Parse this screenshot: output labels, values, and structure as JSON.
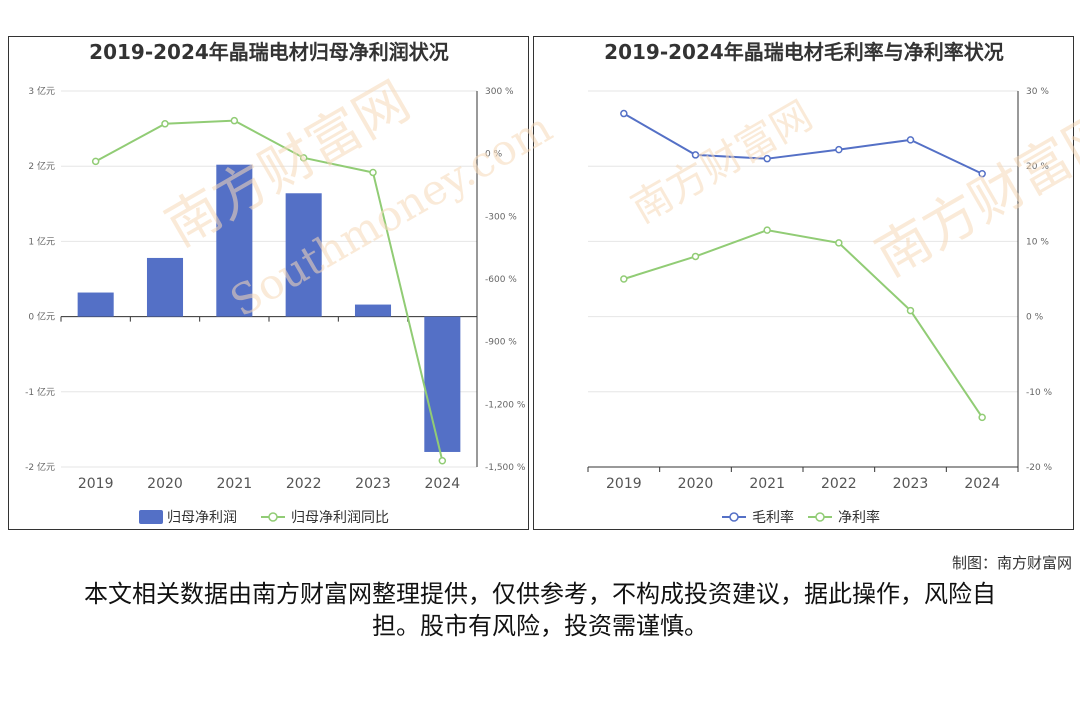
{
  "colors": {
    "bar": "#5470c6",
    "line_green": "#91cc75",
    "line_blue": "#5470c6",
    "grid": "#e6e6e6",
    "axis": "#333333"
  },
  "chart_data": [
    {
      "type": "bar",
      "title": "2019-2024年晶瑞电材归母净利润状况",
      "categories": [
        "2019",
        "2020",
        "2021",
        "2022",
        "2023",
        "2024"
      ],
      "y_left": {
        "min": -2,
        "max": 3,
        "step": 1,
        "unit": "亿元",
        "tick_labels": [
          "-2 亿元",
          "-1 亿元",
          "0 亿元",
          "1 亿元",
          "2 亿元",
          "3 亿元"
        ]
      },
      "y_right": {
        "min": -1500,
        "max": 300,
        "step": 300,
        "unit": "%",
        "tick_labels": [
          "-1,500 %",
          "-1,200 %",
          "-900 %",
          "-600 %",
          "-300 %",
          "0 %",
          "300 %"
        ]
      },
      "series": [
        {
          "name": "归母净利润",
          "type": "bar",
          "axis": "left",
          "values": [
            0.32,
            0.78,
            2.02,
            1.64,
            0.16,
            -1.8
          ]
        },
        {
          "name": "归母净利润同比",
          "type": "line",
          "axis": "right",
          "values": [
            -37,
            143,
            158,
            -20,
            -90,
            -1470
          ]
        }
      ],
      "legend": [
        "归母净利润",
        "归母净利润同比"
      ],
      "legend_position": "bottom"
    },
    {
      "type": "line",
      "title": "2019-2024年晶瑞电材毛利率与净利率状况",
      "categories": [
        "2019",
        "2020",
        "2021",
        "2022",
        "2023",
        "2024"
      ],
      "y_right": {
        "min": -20,
        "max": 30,
        "step": 10,
        "unit": "%",
        "tick_labels": [
          "-20 %",
          "-10 %",
          "0 %",
          "10 %",
          "20 %",
          "30 %"
        ]
      },
      "series": [
        {
          "name": "毛利率",
          "type": "line",
          "values": [
            27,
            21.5,
            21,
            22.2,
            23.5,
            19
          ]
        },
        {
          "name": "净利率",
          "type": "line",
          "values": [
            5,
            8,
            11.5,
            9.8,
            0.8,
            -13.4
          ]
        }
      ],
      "legend": [
        "毛利率",
        "净利率"
      ],
      "legend_position": "bottom"
    }
  ],
  "watermark": {
    "text_cn": "南方财富网",
    "text_en": "Southmoney.com"
  },
  "credit": "制图：南方财富网",
  "disclaimer": "本文相关数据由南方财富网整理提供，仅供参考，不构成投资建议，据此操作，风险自担。股市有风险，投资需谨慎。"
}
